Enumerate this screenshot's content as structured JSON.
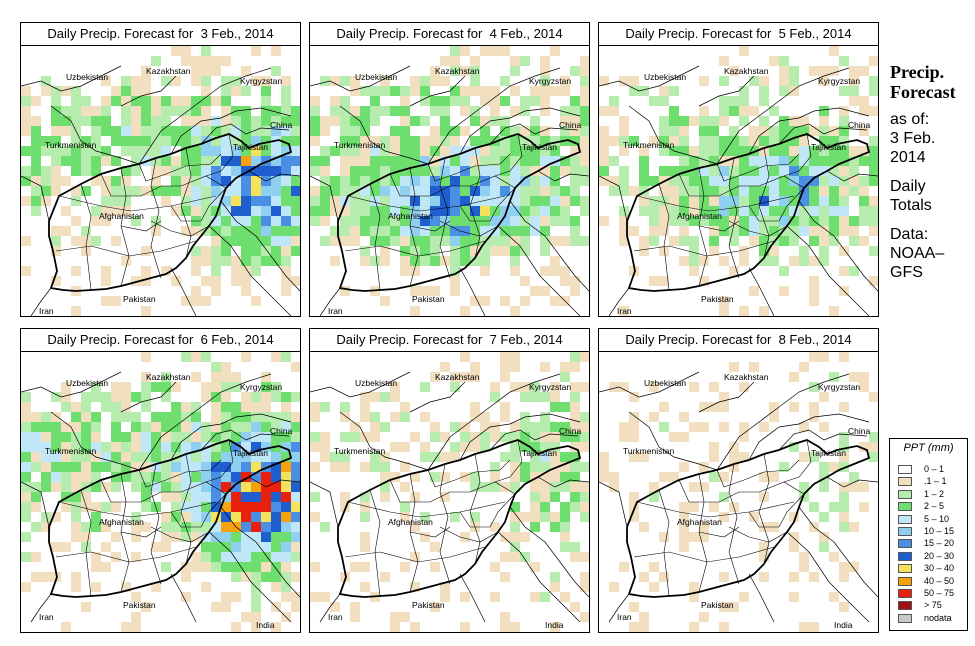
{
  "panels": [
    {
      "title": "Daily Precip. Forecast for  3 Feb., 2014",
      "intensity": 0.85,
      "focus": "east"
    },
    {
      "title": "Daily Precip. Forecast for  4 Feb., 2014",
      "intensity": 0.8,
      "focus": "south"
    },
    {
      "title": "Daily Precip. Forecast for  5 Feb., 2014",
      "intensity": 0.6,
      "focus": "center"
    },
    {
      "title": "Daily Precip. Forecast for  6 Feb., 2014",
      "intensity": 1.0,
      "focus": "east"
    },
    {
      "title": "Daily Precip. Forecast for  7 Feb., 2014",
      "intensity": 0.35,
      "focus": "northeast"
    },
    {
      "title": "Daily Precip. Forecast for  8 Feb., 2014",
      "intensity": 0.15,
      "focus": "northeast"
    }
  ],
  "country_labels": [
    "Uzbekistan",
    "Kazakhstan",
    "Kyrgyzstan",
    "China",
    "Turkmenistan",
    "Tajikistan",
    "Afghanistan",
    "Pakistan",
    "Iran",
    "India"
  ],
  "side": {
    "title_line1": "Precip.",
    "title_line2": "Forecast",
    "asof_line1": "as of:",
    "asof_line2": "3 Feb.",
    "asof_line3": "2014",
    "daily_line1": "Daily",
    "daily_line2": "Totals",
    "data_line1": "Data:",
    "data_line2": "NOAA–",
    "data_line3": "GFS"
  },
  "legend": {
    "title": "PPT (mm)",
    "entries": [
      {
        "label": "0 – 1",
        "color": "#ffffff"
      },
      {
        "label": ".1 – 1",
        "color": "#f1dfc0"
      },
      {
        "label": "1 – 2",
        "color": "#b6ecae"
      },
      {
        "label": "2 – 5",
        "color": "#6ede6e"
      },
      {
        "label": "5 – 10",
        "color": "#bfe7f7"
      },
      {
        "label": "10 – 15",
        "color": "#8fd0f1"
      },
      {
        "label": "15 – 20",
        "color": "#4a8fe4"
      },
      {
        "label": "20 – 30",
        "color": "#1f5ecf"
      },
      {
        "label": "30 – 40",
        "color": "#f4e35a"
      },
      {
        "label": "40 – 50",
        "color": "#f6a20c"
      },
      {
        "label": "50 – 75",
        "color": "#e8200c"
      },
      {
        "label": "> 75",
        "color": "#a01010"
      },
      {
        "label": "nodata",
        "color": "#c8c8c8"
      }
    ]
  }
}
